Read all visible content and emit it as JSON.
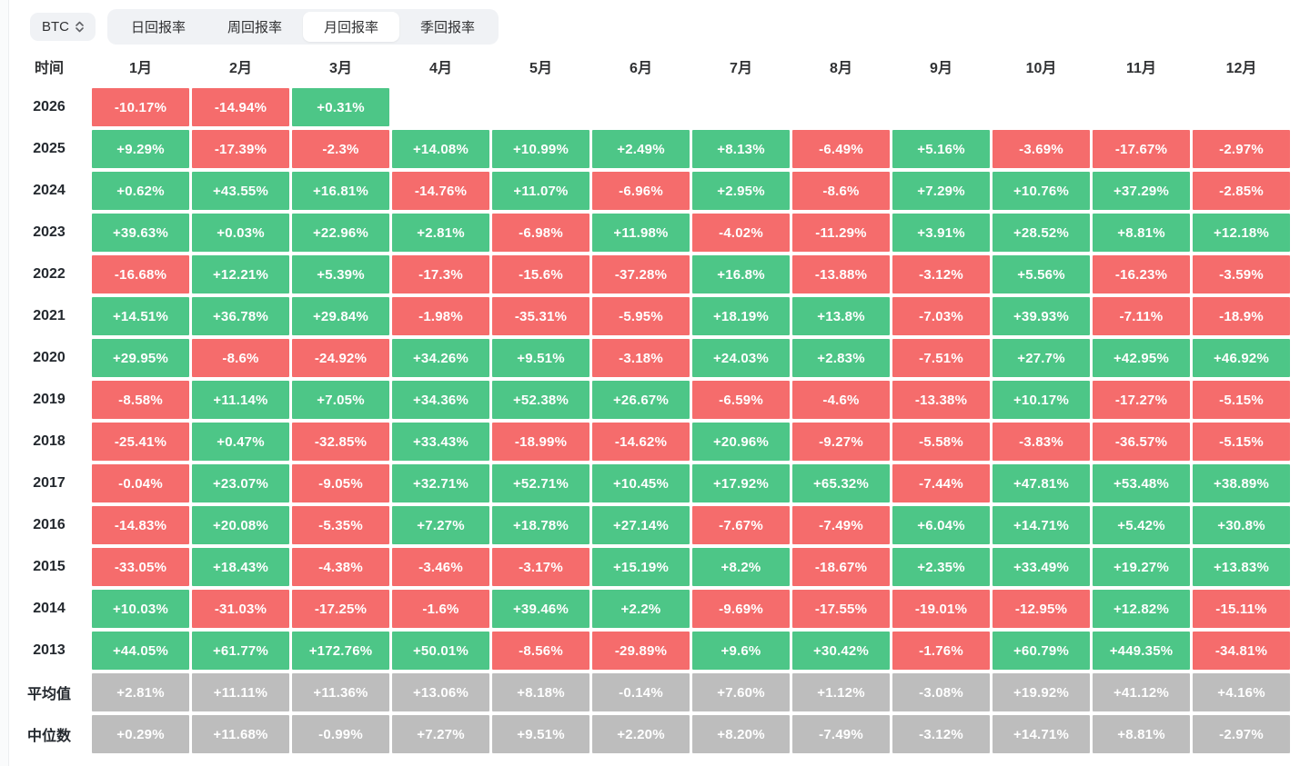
{
  "controls": {
    "symbol": "BTC",
    "tabs": [
      {
        "id": "daily",
        "label": "日回报率",
        "active": false
      },
      {
        "id": "weekly",
        "label": "周回报率",
        "active": false
      },
      {
        "id": "monthly",
        "label": "月回报率",
        "active": true
      },
      {
        "id": "quarterly",
        "label": "季回报率",
        "active": false
      }
    ]
  },
  "colors": {
    "positive": "#4dc687",
    "negative": "#f56c6c",
    "summary": "#bdbdbd"
  },
  "table": {
    "time_header": "时间",
    "months": [
      "1月",
      "2月",
      "3月",
      "4月",
      "5月",
      "6月",
      "7月",
      "8月",
      "9月",
      "10月",
      "11月",
      "12月"
    ],
    "rows": [
      {
        "label": "2026",
        "summary": false,
        "values": [
          "-10.17%",
          "-14.94%",
          "+0.31%",
          "",
          "",
          "",
          "",
          "",
          "",
          "",
          "",
          ""
        ]
      },
      {
        "label": "2025",
        "summary": false,
        "values": [
          "+9.29%",
          "-17.39%",
          "-2.3%",
          "+14.08%",
          "+10.99%",
          "+2.49%",
          "+8.13%",
          "-6.49%",
          "+5.16%",
          "-3.69%",
          "-17.67%",
          "-2.97%"
        ]
      },
      {
        "label": "2024",
        "summary": false,
        "values": [
          "+0.62%",
          "+43.55%",
          "+16.81%",
          "-14.76%",
          "+11.07%",
          "-6.96%",
          "+2.95%",
          "-8.6%",
          "+7.29%",
          "+10.76%",
          "+37.29%",
          "-2.85%"
        ]
      },
      {
        "label": "2023",
        "summary": false,
        "values": [
          "+39.63%",
          "+0.03%",
          "+22.96%",
          "+2.81%",
          "-6.98%",
          "+11.98%",
          "-4.02%",
          "-11.29%",
          "+3.91%",
          "+28.52%",
          "+8.81%",
          "+12.18%"
        ]
      },
      {
        "label": "2022",
        "summary": false,
        "values": [
          "-16.68%",
          "+12.21%",
          "+5.39%",
          "-17.3%",
          "-15.6%",
          "-37.28%",
          "+16.8%",
          "-13.88%",
          "-3.12%",
          "+5.56%",
          "-16.23%",
          "-3.59%"
        ]
      },
      {
        "label": "2021",
        "summary": false,
        "values": [
          "+14.51%",
          "+36.78%",
          "+29.84%",
          "-1.98%",
          "-35.31%",
          "-5.95%",
          "+18.19%",
          "+13.8%",
          "-7.03%",
          "+39.93%",
          "-7.11%",
          "-18.9%"
        ]
      },
      {
        "label": "2020",
        "summary": false,
        "values": [
          "+29.95%",
          "-8.6%",
          "-24.92%",
          "+34.26%",
          "+9.51%",
          "-3.18%",
          "+24.03%",
          "+2.83%",
          "-7.51%",
          "+27.7%",
          "+42.95%",
          "+46.92%"
        ]
      },
      {
        "label": "2019",
        "summary": false,
        "values": [
          "-8.58%",
          "+11.14%",
          "+7.05%",
          "+34.36%",
          "+52.38%",
          "+26.67%",
          "-6.59%",
          "-4.6%",
          "-13.38%",
          "+10.17%",
          "-17.27%",
          "-5.15%"
        ]
      },
      {
        "label": "2018",
        "summary": false,
        "values": [
          "-25.41%",
          "+0.47%",
          "-32.85%",
          "+33.43%",
          "-18.99%",
          "-14.62%",
          "+20.96%",
          "-9.27%",
          "-5.58%",
          "-3.83%",
          "-36.57%",
          "-5.15%"
        ]
      },
      {
        "label": "2017",
        "summary": false,
        "values": [
          "-0.04%",
          "+23.07%",
          "-9.05%",
          "+32.71%",
          "+52.71%",
          "+10.45%",
          "+17.92%",
          "+65.32%",
          "-7.44%",
          "+47.81%",
          "+53.48%",
          "+38.89%"
        ]
      },
      {
        "label": "2016",
        "summary": false,
        "values": [
          "-14.83%",
          "+20.08%",
          "-5.35%",
          "+7.27%",
          "+18.78%",
          "+27.14%",
          "-7.67%",
          "-7.49%",
          "+6.04%",
          "+14.71%",
          "+5.42%",
          "+30.8%"
        ]
      },
      {
        "label": "2015",
        "summary": false,
        "values": [
          "-33.05%",
          "+18.43%",
          "-4.38%",
          "-3.46%",
          "-3.17%",
          "+15.19%",
          "+8.2%",
          "-18.67%",
          "+2.35%",
          "+33.49%",
          "+19.27%",
          "+13.83%"
        ]
      },
      {
        "label": "2014",
        "summary": false,
        "values": [
          "+10.03%",
          "-31.03%",
          "-17.25%",
          "-1.6%",
          "+39.46%",
          "+2.2%",
          "-9.69%",
          "-17.55%",
          "-19.01%",
          "-12.95%",
          "+12.82%",
          "-15.11%"
        ]
      },
      {
        "label": "2013",
        "summary": false,
        "values": [
          "+44.05%",
          "+61.77%",
          "+172.76%",
          "+50.01%",
          "-8.56%",
          "-29.89%",
          "+9.6%",
          "+30.42%",
          "-1.76%",
          "+60.79%",
          "+449.35%",
          "-34.81%"
        ]
      },
      {
        "label": "平均值",
        "summary": true,
        "values": [
          "+2.81%",
          "+11.11%",
          "+11.36%",
          "+13.06%",
          "+8.18%",
          "-0.14%",
          "+7.60%",
          "+1.12%",
          "-3.08%",
          "+19.92%",
          "+41.12%",
          "+4.16%"
        ]
      },
      {
        "label": "中位数",
        "summary": true,
        "values": [
          "+0.29%",
          "+11.68%",
          "-0.99%",
          "+7.27%",
          "+9.51%",
          "+2.20%",
          "+8.20%",
          "-7.49%",
          "-3.12%",
          "+14.71%",
          "+8.81%",
          "-2.97%"
        ]
      }
    ]
  }
}
